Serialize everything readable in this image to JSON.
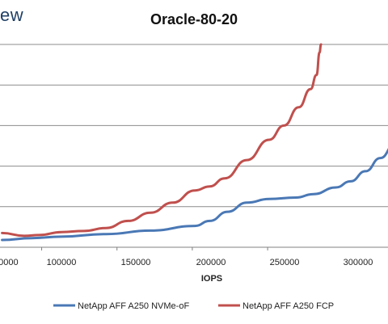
{
  "header": {
    "brand_fragment": "ew"
  },
  "chart_data": {
    "type": "line",
    "title": "Oracle-80-20",
    "xlabel": "IOPS",
    "ylabel": "",
    "x_ticks": [
      100000,
      150000,
      200000,
      250000,
      300000
    ],
    "x_tick_labels": [
      "100000",
      "150000",
      "200000",
      "250000",
      "300000"
    ],
    "xlim_visible": [
      60000,
      325000
    ],
    "grid": "horizontal",
    "legend_position": "bottom",
    "series": [
      {
        "name": "NetApp AFF A250 NVMe-oF",
        "color": "#4a78b5",
        "points": [
          [
            60000,
            0.36
          ],
          [
            80000,
            0.45
          ],
          [
            100000,
            0.52
          ],
          [
            130000,
            0.65
          ],
          [
            160000,
            0.82
          ],
          [
            190000,
            1.05
          ],
          [
            200000,
            1.3
          ],
          [
            212000,
            1.75
          ],
          [
            225000,
            2.2
          ],
          [
            240000,
            2.38
          ],
          [
            258000,
            2.45
          ],
          [
            270000,
            2.62
          ],
          [
            285000,
            2.95
          ],
          [
            295000,
            3.25
          ],
          [
            305000,
            3.75
          ],
          [
            315000,
            4.4
          ],
          [
            325000,
            5.1
          ]
        ]
      },
      {
        "name": "NetApp AFF A250 FCP",
        "color": "#c0504d",
        "points": [
          [
            60000,
            0.7
          ],
          [
            75000,
            0.56
          ],
          [
            85000,
            0.6
          ],
          [
            100000,
            0.75
          ],
          [
            115000,
            0.8
          ],
          [
            130000,
            0.95
          ],
          [
            145000,
            1.3
          ],
          [
            160000,
            1.7
          ],
          [
            175000,
            2.2
          ],
          [
            190000,
            2.8
          ],
          [
            200000,
            3.0
          ],
          [
            210000,
            3.4
          ],
          [
            225000,
            4.3
          ],
          [
            240000,
            5.3
          ],
          [
            250000,
            6.0
          ],
          [
            260000,
            6.9
          ],
          [
            268000,
            7.8
          ],
          [
            272000,
            8.5
          ],
          [
            274000,
            9.6
          ],
          [
            275000,
            10.0
          ]
        ]
      }
    ]
  }
}
